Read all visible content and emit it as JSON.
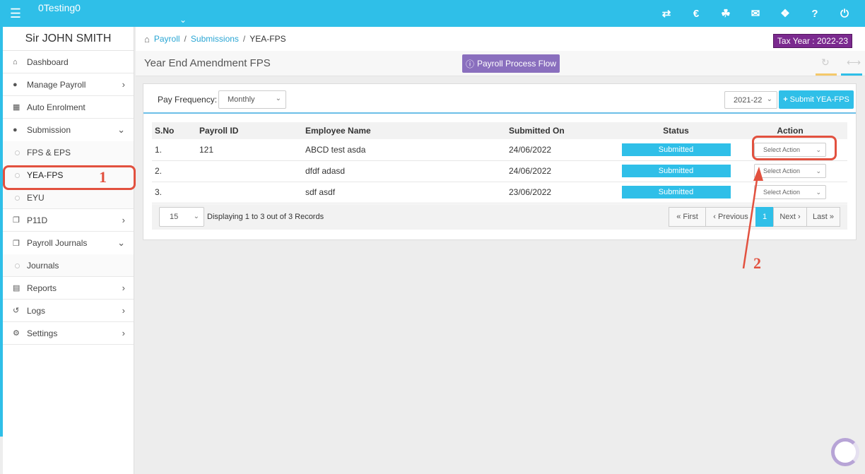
{
  "header": {
    "company": "0Testing0",
    "icons": [
      "menu-icon",
      "chevron-down-icon",
      "transfer-icon",
      "currency-icon",
      "users-icon",
      "megaphone-icon",
      "ticket-icon",
      "help-icon",
      "power-icon"
    ],
    "help_glyph": "?"
  },
  "sidebar": {
    "user_name": "Sir JOHN SMITH",
    "items": [
      {
        "label": "Dashboard",
        "icon": "home-icon"
      },
      {
        "label": "Manage Payroll",
        "icon": "user-icon"
      },
      {
        "label": "Auto Enrolment",
        "icon": "grid-icon"
      },
      {
        "label": "Submission",
        "icon": "users-icon"
      },
      {
        "label": "P11D",
        "icon": "copy-icon"
      },
      {
        "label": "Payroll Journals",
        "icon": "copy-icon"
      },
      {
        "label": "Reports",
        "icon": "document-icon"
      },
      {
        "label": "Logs",
        "icon": "history-icon"
      },
      {
        "label": "Settings",
        "icon": "gear-icon"
      }
    ],
    "submission_sub": [
      "FPS & EPS",
      "YEA-FPS",
      "EYU"
    ],
    "journals_sub": [
      "Journals"
    ]
  },
  "breadcrumb": {
    "items": [
      "Payroll",
      "Submissions",
      "YEA-FPS"
    ]
  },
  "tax_year": "Tax Year : 2022-23",
  "page": {
    "title": "Year End Amendment FPS",
    "flow_button": "Payroll Process Flow"
  },
  "filters": {
    "pay_frequency_label": "Pay Frequency:",
    "pay_frequency_value": "Monthly",
    "year_value": "2021-22",
    "submit_label": "Submit YEA-FPS"
  },
  "table": {
    "columns": [
      "S.No",
      "Payroll ID",
      "Employee Name",
      "Submitted On",
      "Status",
      "Action"
    ],
    "rows": [
      {
        "sno": "1.",
        "payroll_id": "121",
        "name": "ABCD test asda",
        "submitted_on": "24/06/2022",
        "status": "Submitted",
        "action": "Select Action"
      },
      {
        "sno": "2.",
        "payroll_id": "",
        "name": "dfdf adasd",
        "submitted_on": "24/06/2022",
        "status": "Submitted",
        "action": "Select Action"
      },
      {
        "sno": "3.",
        "payroll_id": "",
        "name": "sdf asdf",
        "submitted_on": "23/06/2022",
        "status": "Submitted",
        "action": "Select Action"
      }
    ]
  },
  "footer": {
    "per_page": "15",
    "records_text": "Displaying 1 to 3 out of 3 Records",
    "pager": {
      "first": "« First",
      "previous": "‹ Previous",
      "current": "1",
      "next": "Next ›",
      "last": "Last »"
    }
  },
  "annotations": {
    "one": "1",
    "two": "2",
    "color": "#e2513f"
  },
  "colors": {
    "primary": "#2fbfe8",
    "purple": "#8a6fbe",
    "tax_year": "#7b2a8f"
  }
}
